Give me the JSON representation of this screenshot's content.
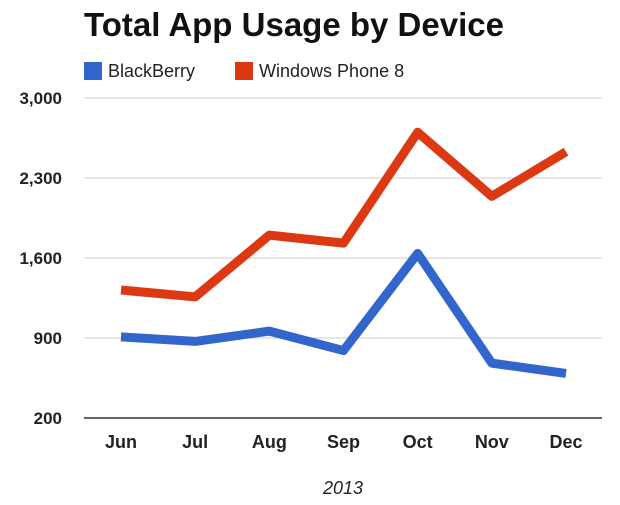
{
  "chart_data": {
    "type": "line",
    "title": "Total App Usage by Device",
    "xlabel": "2013",
    "ylabel": "",
    "categories": [
      "Jun",
      "Jul",
      "Aug",
      "Sep",
      "Oct",
      "Nov",
      "Dec"
    ],
    "ylim": [
      200,
      3000
    ],
    "yticks": [
      200,
      900,
      1600,
      2300,
      3000
    ],
    "ytick_labels": [
      "200",
      "900",
      "1,600",
      "2,300",
      "3,000"
    ],
    "grid": true,
    "legend": "top-left",
    "series": [
      {
        "name": "BlackBerry",
        "color": "#3366cc",
        "values": [
          910,
          870,
          960,
          790,
          1640,
          680,
          590
        ]
      },
      {
        "name": "Windows Phone 8",
        "color": "#dc3912",
        "values": [
          1320,
          1260,
          1800,
          1730,
          2700,
          2140,
          2530
        ]
      }
    ]
  }
}
